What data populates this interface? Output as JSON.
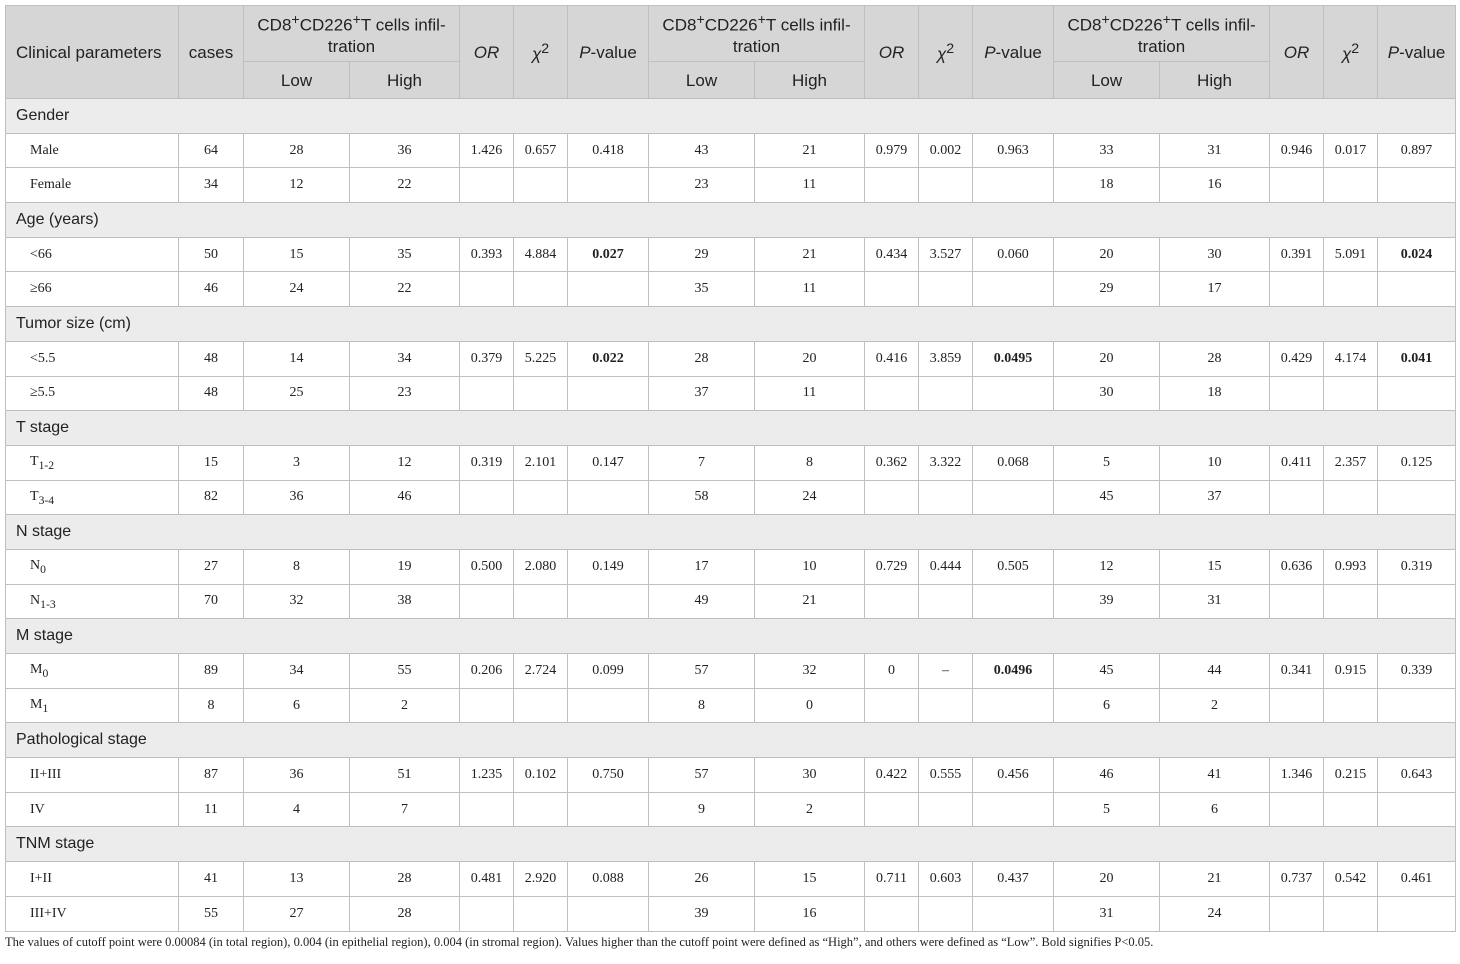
{
  "table": {
    "header": {
      "clinical_parameters": "Clinical parameters",
      "cases": "cases",
      "group_title": {
        "pre": "CD8",
        "sup1": "+",
        "mid": "CD226",
        "sup2": "+",
        "post": "T cells infil-tration"
      },
      "low": "Low",
      "high": "High",
      "or": "OR",
      "chi": "χ",
      "chi_sup": "2",
      "p_italic": "P",
      "p_rest": "-value"
    },
    "groups": [
      {
        "name": "Gender",
        "rows": [
          {
            "label": "Male",
            "sub": "",
            "cells": [
              "64",
              "28",
              "36",
              "1.426",
              "0.657",
              "0.418",
              "43",
              "21",
              "0.979",
              "0.002",
              "0.963",
              "33",
              "31",
              "0.946",
              "0.017",
              "0.897"
            ],
            "bold": []
          },
          {
            "label": "Female",
            "sub": "",
            "cells": [
              "34",
              "12",
              "22",
              "",
              "",
              "",
              "23",
              "11",
              "",
              "",
              "",
              "18",
              "16",
              "",
              "",
              ""
            ],
            "bold": []
          }
        ]
      },
      {
        "name": "Age (years)",
        "rows": [
          {
            "label": "<66",
            "sub": "",
            "cells": [
              "50",
              "15",
              "35",
              "0.393",
              "4.884",
              "0.027",
              "29",
              "21",
              "0.434",
              "3.527",
              "0.060",
              "20",
              "30",
              "0.391",
              "5.091",
              "0.024"
            ],
            "bold": [
              5,
              15
            ]
          },
          {
            "label": "≥66",
            "sub": "",
            "cells": [
              "46",
              "24",
              "22",
              "",
              "",
              "",
              "35",
              "11",
              "",
              "",
              "",
              "29",
              "17",
              "",
              "",
              ""
            ],
            "bold": []
          }
        ]
      },
      {
        "name": "Tumor size (cm)",
        "rows": [
          {
            "label": "<5.5",
            "sub": "",
            "cells": [
              "48",
              "14",
              "34",
              "0.379",
              "5.225",
              "0.022",
              "28",
              "20",
              "0.416",
              "3.859",
              "0.0495",
              "20",
              "28",
              "0.429",
              "4.174",
              "0.041"
            ],
            "bold": [
              5,
              10,
              15
            ]
          },
          {
            "label": "≥5.5",
            "sub": "",
            "cells": [
              "48",
              "25",
              "23",
              "",
              "",
              "",
              "37",
              "11",
              "",
              "",
              "",
              "30",
              "18",
              "",
              "",
              ""
            ],
            "bold": []
          }
        ]
      },
      {
        "name": "T stage",
        "rows": [
          {
            "label": "T",
            "sub": "1-2",
            "cells": [
              "15",
              "3",
              "12",
              "0.319",
              "2.101",
              "0.147",
              "7",
              "8",
              "0.362",
              "3.322",
              "0.068",
              "5",
              "10",
              "0.411",
              "2.357",
              "0.125"
            ],
            "bold": []
          },
          {
            "label": "T",
            "sub": "3-4",
            "cells": [
              "82",
              "36",
              "46",
              "",
              "",
              "",
              "58",
              "24",
              "",
              "",
              "",
              "45",
              "37",
              "",
              "",
              ""
            ],
            "bold": []
          }
        ]
      },
      {
        "name": "N stage",
        "rows": [
          {
            "label": "N",
            "sub": "0",
            "cells": [
              "27",
              "8",
              "19",
              "0.500",
              "2.080",
              "0.149",
              "17",
              "10",
              "0.729",
              "0.444",
              "0.505",
              "12",
              "15",
              "0.636",
              "0.993",
              "0.319"
            ],
            "bold": []
          },
          {
            "label": "N",
            "sub": "1-3",
            "cells": [
              "70",
              "32",
              "38",
              "",
              "",
              "",
              "49",
              "21",
              "",
              "",
              "",
              "39",
              "31",
              "",
              "",
              ""
            ],
            "bold": []
          }
        ]
      },
      {
        "name": "M stage",
        "rows": [
          {
            "label": "M",
            "sub": "0",
            "cells": [
              "89",
              "34",
              "55",
              "0.206",
              "2.724",
              "0.099",
              "57",
              "32",
              "0",
              "–",
              "0.0496",
              "45",
              "44",
              "0.341",
              "0.915",
              "0.339"
            ],
            "bold": [
              10
            ]
          },
          {
            "label": "M",
            "sub": "1",
            "cells": [
              "8",
              "6",
              "2",
              "",
              "",
              "",
              "8",
              "0",
              "",
              "",
              "",
              "6",
              "2",
              "",
              "",
              ""
            ],
            "bold": []
          }
        ]
      },
      {
        "name": "Pathological stage",
        "rows": [
          {
            "label": "II+III",
            "sub": "",
            "cells": [
              "87",
              "36",
              "51",
              "1.235",
              "0.102",
              "0.750",
              "57",
              "30",
              "0.422",
              "0.555",
              "0.456",
              "46",
              "41",
              "1.346",
              "0.215",
              "0.643"
            ],
            "bold": []
          },
          {
            "label": "IV",
            "sub": "",
            "cells": [
              "11",
              "4",
              "7",
              "",
              "",
              "",
              "9",
              "2",
              "",
              "",
              "",
              "5",
              "6",
              "",
              "",
              ""
            ],
            "bold": []
          }
        ]
      },
      {
        "name": "TNM stage",
        "rows": [
          {
            "label": "I+II",
            "sub": "",
            "cells": [
              "41",
              "13",
              "28",
              "0.481",
              "2.920",
              "0.088",
              "26",
              "15",
              "0.711",
              "0.603",
              "0.437",
              "20",
              "21",
              "0.737",
              "0.542",
              "0.461"
            ],
            "bold": []
          },
          {
            "label": "III+IV",
            "sub": "",
            "cells": [
              "55",
              "27",
              "28",
              "",
              "",
              "",
              "39",
              "16",
              "",
              "",
              "",
              "31",
              "24",
              "",
              "",
              ""
            ],
            "bold": []
          }
        ]
      }
    ],
    "footnote": "The values of cutoff point were 0.00084 (in total region), 0.004 (in epithelial region), 0.004 (in stromal region). Values higher than the cutoff point were defined as “High”, and others were defined as “Low”. Bold signifies P<0.05."
  }
}
